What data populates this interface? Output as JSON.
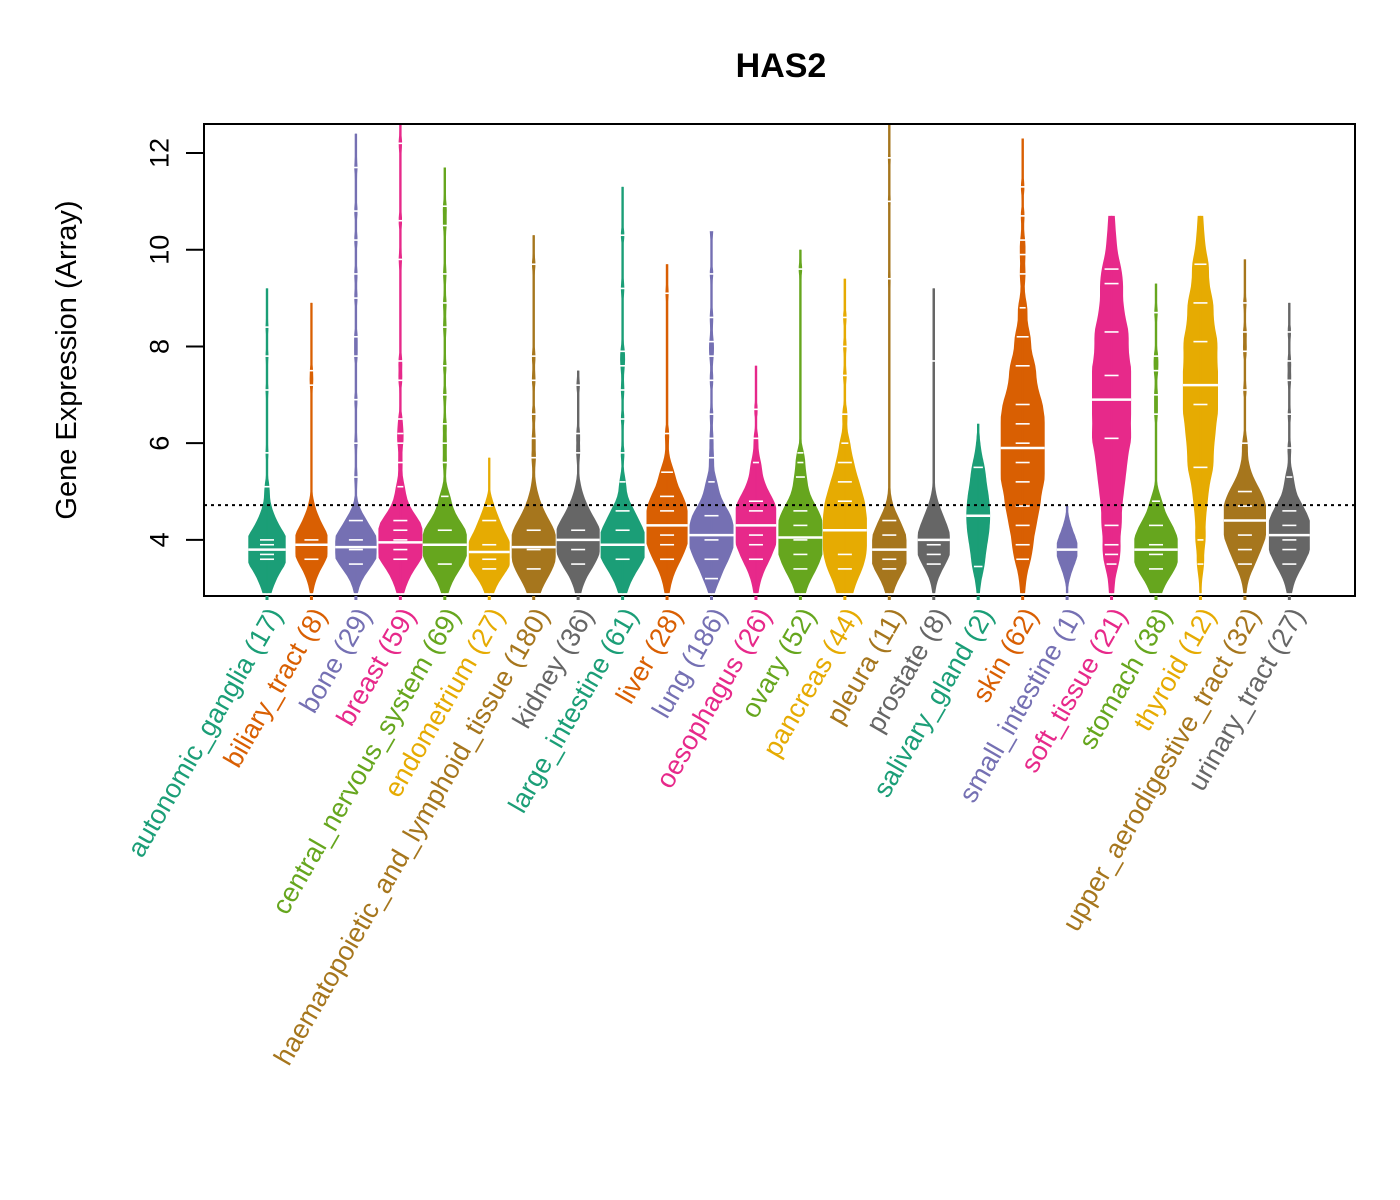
{
  "chart_data": {
    "type": "violin",
    "title": "HAS2",
    "xlabel": "",
    "ylabel": "Gene Expression (Array)",
    "ylim": [
      2.84,
      12.6
    ],
    "yticks": [
      4,
      6,
      8,
      10,
      12
    ],
    "reference_line": {
      "value": 4.72,
      "style": "dotted",
      "color": "#000000"
    },
    "grid": false,
    "legend": "none",
    "categories": [
      {
        "name": "autonomic_ganglia",
        "n": 17,
        "label": "autonomic_ganglia (17)",
        "color": "#1B9E77",
        "min": 2.9,
        "max": 9.2,
        "median": 3.8,
        "bulk": [
          3.1,
          4.8
        ],
        "points": [
          3.6,
          3.7,
          3.8,
          3.9,
          4.0,
          5.1,
          5.8,
          7.1,
          7.8,
          8.4
        ]
      },
      {
        "name": "biliary_tract",
        "n": 8,
        "label": "biliary_tract (8)",
        "color": "#D95F02",
        "min": 2.9,
        "max": 8.9,
        "median": 3.9,
        "bulk": [
          3.2,
          4.7
        ],
        "points": [
          3.6,
          3.9,
          4.0,
          7.2,
          7.5
        ]
      },
      {
        "name": "bone",
        "n": 29,
        "label": "bone (29)",
        "color": "#7570B3",
        "min": 2.9,
        "max": 12.4,
        "median": 3.85,
        "bulk": [
          3.1,
          4.5
        ],
        "points": [
          3.5,
          3.8,
          4.0,
          4.4,
          5.3,
          6.0,
          6.9,
          7.8,
          8.2,
          9.0,
          9.5,
          10.2,
          10.8,
          11.7
        ]
      },
      {
        "name": "breast",
        "n": 59,
        "label": "breast (59)",
        "color": "#E7298A",
        "min": 2.9,
        "max": 12.6,
        "median": 3.95,
        "bulk": [
          3.1,
          4.9
        ],
        "points": [
          3.6,
          3.8,
          4.0,
          4.2,
          4.4,
          5.1,
          5.6,
          6.0,
          6.2,
          6.5,
          7.3,
          7.7,
          9.8,
          10.6,
          12.2
        ]
      },
      {
        "name": "central_nervous_system",
        "n": 69,
        "label": "central_nervous_system (69)",
        "color": "#66A61E",
        "min": 2.9,
        "max": 11.7,
        "median": 3.9,
        "bulk": [
          3.1,
          4.8
        ],
        "points": [
          3.5,
          3.9,
          4.2,
          4.9,
          5.6,
          6.0,
          6.4,
          7.0,
          7.6,
          8.4,
          8.9,
          9.5,
          10.5,
          10.9
        ]
      },
      {
        "name": "endometrium",
        "n": 27,
        "label": "endometrium (27)",
        "color": "#E6AB02",
        "min": 2.9,
        "max": 5.7,
        "median": 3.75,
        "bulk": [
          3.0,
          4.6
        ],
        "points": [
          3.4,
          3.6,
          3.9,
          4.4,
          4.7
        ]
      },
      {
        "name": "haematopoietic_and_lymphoid_tissue",
        "n": 180,
        "label": "haematopoietic_and_lymphoid_tissue (180)",
        "color": "#A6761D",
        "min": 2.9,
        "max": 10.3,
        "median": 3.85,
        "bulk": [
          3.0,
          5.0
        ],
        "points": [
          3.4,
          3.8,
          4.2,
          5.7,
          6.1,
          6.6,
          7.3,
          7.8,
          9.7
        ]
      },
      {
        "name": "kidney",
        "n": 36,
        "label": "kidney (36)",
        "color": "#666666",
        "min": 2.9,
        "max": 7.5,
        "median": 4.0,
        "bulk": [
          3.1,
          4.9
        ],
        "points": [
          3.5,
          3.8,
          4.2,
          5.8,
          6.2,
          7.2
        ]
      },
      {
        "name": "large_intestine",
        "n": 61,
        "label": "large_intestine (61)",
        "color": "#1B9E77",
        "min": 2.9,
        "max": 11.3,
        "median": 3.9,
        "bulk": [
          3.2,
          5.0
        ],
        "points": [
          3.6,
          3.9,
          4.2,
          4.6,
          5.2,
          5.8,
          6.5,
          7.1,
          7.6,
          7.9,
          9.2,
          10.3
        ]
      },
      {
        "name": "liver",
        "n": 28,
        "label": "liver (28)",
        "color": "#D95F02",
        "min": 2.9,
        "max": 9.7,
        "median": 4.3,
        "bulk": [
          3.1,
          5.3
        ],
        "points": [
          3.6,
          3.9,
          4.1,
          4.6,
          4.9,
          5.4,
          6.2,
          9.1
        ]
      },
      {
        "name": "lung",
        "n": 186,
        "label": "lung (186)",
        "color": "#7570B3",
        "min": 2.9,
        "max": 10.4,
        "median": 4.1,
        "bulk": [
          3.1,
          5.0
        ],
        "points": [
          3.2,
          3.6,
          4.0,
          4.5,
          5.2,
          5.7,
          6.1,
          6.6,
          7.3,
          7.8,
          8.1,
          8.6,
          9.5,
          10.4
        ]
      },
      {
        "name": "oesophagus",
        "n": 26,
        "label": "oesophagus (26)",
        "color": "#E7298A",
        "min": 2.9,
        "max": 7.6,
        "median": 4.3,
        "bulk": [
          3.1,
          5.3
        ],
        "points": [
          3.6,
          3.9,
          4.1,
          4.6,
          4.8,
          5.6,
          6.1,
          6.7
        ]
      },
      {
        "name": "ovary",
        "n": 52,
        "label": "ovary (52)",
        "color": "#66A61E",
        "min": 2.9,
        "max": 10.0,
        "median": 4.05,
        "bulk": [
          3.0,
          5.2
        ],
        "points": [
          3.4,
          3.7,
          4.0,
          4.3,
          4.6,
          5.3,
          5.6,
          5.8,
          9.6
        ]
      },
      {
        "name": "pancreas",
        "n": 44,
        "label": "pancreas (44)",
        "color": "#E6AB02",
        "min": 2.9,
        "max": 9.4,
        "median": 4.2,
        "bulk": [
          3.0,
          6.0
        ],
        "points": [
          3.4,
          3.7,
          4.2,
          4.8,
          5.2,
          5.6,
          6.0,
          6.6,
          7.4,
          8.0,
          8.6
        ]
      },
      {
        "name": "pleura",
        "n": 11,
        "label": "pleura (11)",
        "color": "#A6761D",
        "min": 2.9,
        "max": 12.6,
        "median": 3.8,
        "bulk": [
          3.1,
          4.8
        ],
        "points": [
          3.4,
          3.6,
          3.8,
          4.1,
          4.4,
          9.4,
          11.0,
          11.9
        ]
      },
      {
        "name": "prostate",
        "n": 8,
        "label": "prostate (8)",
        "color": "#666666",
        "min": 2.9,
        "max": 9.2,
        "median": 4.0,
        "bulk": [
          3.1,
          4.7
        ],
        "points": [
          3.5,
          3.7,
          3.9,
          7.7
        ]
      },
      {
        "name": "salivary_gland",
        "n": 2,
        "label": "salivary_gland (2)",
        "color": "#1B9E77",
        "min": 2.9,
        "max": 6.4,
        "median": 4.5,
        "bulk": [
          3.3,
          5.9
        ],
        "points": [
          3.45,
          5.5
        ]
      },
      {
        "name": "skin",
        "n": 62,
        "label": "skin (62)",
        "color": "#D95F02",
        "min": 2.9,
        "max": 12.3,
        "median": 5.9,
        "bulk": [
          3.4,
          8.0
        ],
        "points": [
          3.6,
          3.9,
          4.3,
          4.7,
          5.2,
          5.6,
          6.0,
          6.4,
          6.8,
          7.6,
          8.2,
          8.8,
          9.5,
          9.9,
          10.2,
          10.7,
          11.3
        ]
      },
      {
        "name": "small_intestine",
        "n": 1,
        "label": "small_intestine (1)",
        "color": "#7570B3",
        "min": 2.9,
        "max": 4.7,
        "median": 3.8,
        "bulk": [
          3.2,
          4.4
        ],
        "points": [
          3.8
        ]
      },
      {
        "name": "soft_tissue",
        "n": 21,
        "label": "soft_tissue (21)",
        "color": "#E7298A",
        "min": 2.9,
        "max": 10.7,
        "median": 6.9,
        "bulk": [
          3.2,
          9.6
        ],
        "points": [
          3.5,
          3.7,
          3.9,
          4.3,
          6.1,
          6.9,
          7.4,
          8.3,
          9.3,
          9.6
        ]
      },
      {
        "name": "stomach",
        "n": 38,
        "label": "stomach (38)",
        "color": "#66A61E",
        "min": 2.9,
        "max": 9.3,
        "median": 3.8,
        "bulk": [
          3.0,
          4.8
        ],
        "points": [
          3.4,
          3.7,
          3.9,
          4.3,
          4.8,
          6.6,
          7.0,
          7.5,
          7.8,
          8.7
        ]
      },
      {
        "name": "thyroid",
        "n": 12,
        "label": "thyroid (12)",
        "color": "#E6AB02",
        "min": 2.9,
        "max": 10.7,
        "median": 7.2,
        "bulk": [
          3.2,
          9.0
        ],
        "points": [
          3.5,
          4.0,
          5.5,
          6.8,
          7.2,
          8.1,
          8.9,
          9.7
        ]
      },
      {
        "name": "upper_aerodigestive_tract",
        "n": 32,
        "label": "upper_aerodigestive_tract (32)",
        "color": "#A6761D",
        "min": 2.9,
        "max": 9.8,
        "median": 4.4,
        "bulk": [
          3.1,
          5.2
        ],
        "points": [
          3.5,
          3.8,
          4.1,
          4.4,
          4.7,
          5.0,
          6.0,
          7.1,
          7.9,
          8.3,
          8.9
        ]
      },
      {
        "name": "urinary_tract",
        "n": 27,
        "label": "urinary_tract (27)",
        "color": "#666666",
        "min": 2.9,
        "max": 8.9,
        "median": 4.1,
        "bulk": [
          3.1,
          5.0
        ],
        "points": [
          3.5,
          3.8,
          4.0,
          4.3,
          4.6,
          5.3,
          5.9,
          6.6,
          7.3,
          7.7,
          8.3
        ]
      }
    ]
  }
}
